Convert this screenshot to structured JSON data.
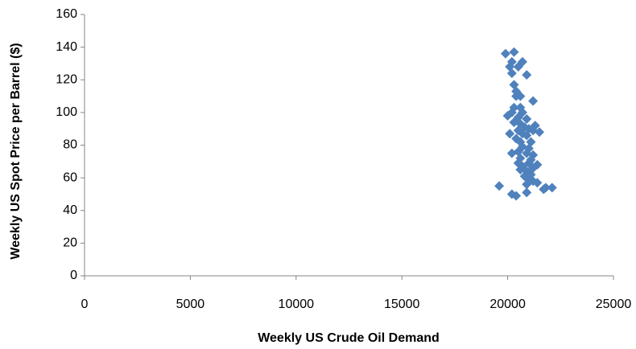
{
  "chart_data": {
    "type": "scatter",
    "x_label": "Weekly US Crude Oil Demand",
    "y_label": "Weekly US Spot Price per Barrel ($)",
    "color": "#4f81bd",
    "xlim": [
      0,
      25000
    ],
    "xticks": [
      0,
      5000,
      10000,
      15000,
      20000,
      25000
    ],
    "ylim": [
      0,
      160
    ],
    "yticks": [
      0,
      20,
      40,
      60,
      80,
      100,
      120,
      140,
      160
    ],
    "grid": false,
    "x": [
      19900,
      20300,
      20200,
      20700,
      20100,
      20500,
      20200,
      20900,
      20300,
      20400,
      20400,
      20600,
      21200,
      20300,
      20600,
      20200,
      20700,
      20000,
      20500,
      20900,
      20300,
      20600,
      21300,
      20800,
      21000,
      20500,
      21200,
      21500,
      20100,
      20700,
      20900,
      20400,
      20600,
      21100,
      20700,
      21000,
      20500,
      20200,
      20900,
      21200,
      20600,
      21100,
      20500,
      21000,
      21400,
      20700,
      21200,
      20600,
      20900,
      21100,
      20800,
      21000,
      21200,
      21400,
      20900,
      19600,
      21800,
      22100,
      21700,
      20200,
      20900,
      20400
    ],
    "values": [
      136,
      137,
      131,
      131,
      128,
      128,
      124,
      123,
      117,
      113,
      110,
      110,
      107,
      103,
      103,
      100,
      100,
      98,
      97,
      96,
      94,
      93,
      92,
      91,
      90,
      89,
      89,
      88,
      87,
      87,
      86,
      84,
      82,
      82,
      79,
      78,
      76,
      75,
      75,
      74,
      72,
      71,
      69,
      69,
      68,
      67,
      66,
      65,
      64,
      62,
      61,
      59,
      58,
      57,
      56,
      55,
      54,
      54,
      53,
      50,
      51,
      49
    ]
  }
}
